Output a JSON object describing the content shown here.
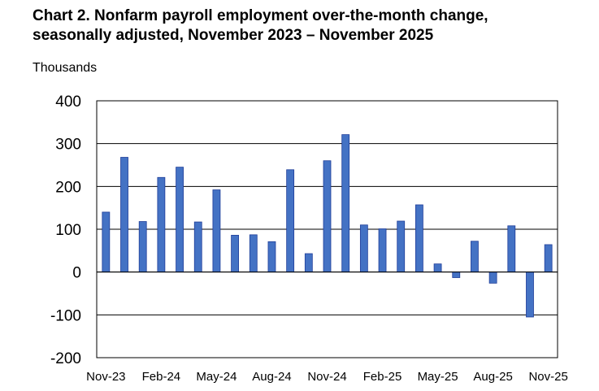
{
  "chart_data": {
    "type": "bar",
    "title_lines": [
      "Chart 2. Nonfarm payroll employment over-the-month change,",
      "seasonally adjusted, November 2023 – November 2025"
    ],
    "ylabel": "Thousands",
    "ylim": [
      -200,
      400
    ],
    "yticks": [
      400,
      300,
      200,
      100,
      0,
      -100,
      -200
    ],
    "grid": true,
    "bar_color": "#4472C4",
    "bar_edge_color": "#1F3D99",
    "categories": [
      "Nov-23",
      "Dec-23",
      "Jan-24",
      "Feb-24",
      "Mar-24",
      "Apr-24",
      "May-24",
      "Jun-24",
      "Jul-24",
      "Aug-24",
      "Sep-24",
      "Oct-24",
      "Nov-24",
      "Dec-24",
      "Jan-25",
      "Feb-25",
      "Mar-25",
      "Apr-25",
      "May-25",
      "Jun-25",
      "Jul-25",
      "Aug-25",
      "Sep-25",
      "Oct-25",
      "Nov-25"
    ],
    "x_tick_labels": [
      {
        "index": 0,
        "label": "Nov-23"
      },
      {
        "index": 3,
        "label": "Feb-24"
      },
      {
        "index": 6,
        "label": "May-24"
      },
      {
        "index": 9,
        "label": "Aug-24"
      },
      {
        "index": 12,
        "label": "Nov-24"
      },
      {
        "index": 15,
        "label": "Feb-25"
      },
      {
        "index": 18,
        "label": "May-25"
      },
      {
        "index": 21,
        "label": "Aug-25"
      },
      {
        "index": 24,
        "label": "Nov-25"
      }
    ],
    "values": [
      140,
      268,
      118,
      221,
      245,
      117,
      192,
      86,
      87,
      71,
      239,
      43,
      260,
      321,
      110,
      101,
      119,
      157,
      19,
      -13,
      72,
      -26,
      108,
      -105,
      64
    ]
  }
}
